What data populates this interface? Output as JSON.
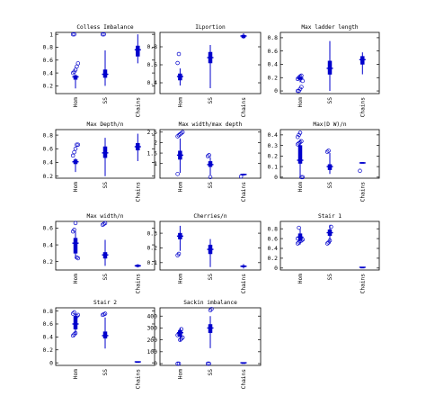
{
  "figure": {
    "accent_color": "#0000cc",
    "axis_color": "#000000"
  },
  "chart_data": [
    {
      "type": "boxplot",
      "title": "Colless Imbalance",
      "categories": [
        "Hom",
        "SS",
        "Chains"
      ],
      "yticks": [
        "0.2",
        "0.4",
        "0.6",
        "0.8",
        "1"
      ],
      "ytick_values": [
        0.2,
        0.4,
        0.6,
        0.8,
        1.0
      ],
      "ylim": [
        0.08,
        1.03
      ],
      "series": [
        {
          "q1": 0.3,
          "median": 0.34,
          "q3": 0.36,
          "whisker_low": 0.16,
          "whisker_high": 0.38,
          "outliers": [
            0.4,
            0.42,
            0.45,
            0.5,
            0.55,
            1.0,
            1.0
          ]
        },
        {
          "q1": 0.33,
          "median": 0.38,
          "q3": 0.45,
          "whisker_low": 0.2,
          "whisker_high": 0.75,
          "outliers": [
            1.0,
            1.0
          ]
        },
        {
          "q1": 0.66,
          "median": 0.76,
          "q3": 0.82,
          "whisker_low": 0.55,
          "whisker_high": 1.0,
          "outliers": []
        }
      ]
    },
    {
      "type": "boxplot",
      "title": "ILportion",
      "categories": [
        "Hom",
        "SS",
        "Chains"
      ],
      "yticks": [
        "0.4",
        "0.6",
        "0.8"
      ],
      "ytick_values": [
        0.4,
        0.6,
        0.8
      ],
      "ylim": [
        0.28,
        0.96
      ],
      "series": [
        {
          "q1": 0.43,
          "median": 0.47,
          "q3": 0.5,
          "whisker_low": 0.37,
          "whisker_high": 0.56,
          "outliers": [
            0.62,
            0.72
          ]
        },
        {
          "q1": 0.62,
          "median": 0.68,
          "q3": 0.74,
          "whisker_low": 0.34,
          "whisker_high": 0.82,
          "outliers": []
        },
        {
          "q1": 0.9,
          "median": 0.92,
          "q3": 0.93,
          "whisker_low": 0.89,
          "whisker_high": 0.95,
          "outliers": []
        }
      ]
    },
    {
      "type": "boxplot",
      "title": "Max ladder length",
      "categories": [
        "Hom",
        "SS",
        "Chains"
      ],
      "yticks": [
        "0",
        "0.2",
        "0.4",
        "0.6",
        "0.8"
      ],
      "ytick_values": [
        0,
        0.2,
        0.4,
        0.6,
        0.8
      ],
      "ylim": [
        -0.04,
        0.88
      ],
      "series": [
        {
          "q1": 0.17,
          "median": 0.19,
          "q3": 0.21,
          "whisker_low": 0.13,
          "whisker_high": 0.24,
          "outliers": [
            0.0,
            0.0,
            0.03,
            0.06,
            0.15,
            0.18,
            0.2,
            0.22,
            0.23
          ]
        },
        {
          "q1": 0.25,
          "median": 0.34,
          "q3": 0.45,
          "whisker_low": 0.0,
          "whisker_high": 0.75,
          "outliers": []
        },
        {
          "q1": 0.4,
          "median": 0.47,
          "q3": 0.52,
          "whisker_low": 0.25,
          "whisker_high": 0.58,
          "outliers": []
        }
      ]
    },
    {
      "type": "boxplot",
      "title": "Max Depth/n",
      "categories": [
        "Hom",
        "SS",
        "Chains"
      ],
      "yticks": [
        "0.2",
        "0.4",
        "0.6",
        "0.8"
      ],
      "ytick_values": [
        0.2,
        0.4,
        0.6,
        0.8
      ],
      "ylim": [
        0.17,
        0.88
      ],
      "series": [
        {
          "q1": 0.38,
          "median": 0.41,
          "q3": 0.44,
          "whisker_low": 0.26,
          "whisker_high": 0.46,
          "outliers": [
            0.5,
            0.55,
            0.6,
            0.66,
            0.66
          ]
        },
        {
          "q1": 0.47,
          "median": 0.54,
          "q3": 0.63,
          "whisker_low": 0.2,
          "whisker_high": 0.76,
          "outliers": []
        },
        {
          "q1": 0.58,
          "median": 0.63,
          "q3": 0.68,
          "whisker_low": 0.42,
          "whisker_high": 0.82,
          "outliers": []
        }
      ]
    },
    {
      "type": "boxplot",
      "title": "Max width/max depth",
      "categories": [
        "Hom",
        "SS",
        "Chains"
      ],
      "yticks": [
        "1",
        "1.5",
        "2",
        "2.5"
      ],
      "ytick_values": [
        1,
        1.5,
        2,
        2.5
      ],
      "ylim": [
        0.3,
        2.62
      ],
      "series": [
        {
          "q1": 1.2,
          "median": 1.4,
          "q3": 1.6,
          "whisker_low": 0.55,
          "whisker_high": 2.2,
          "outliers": [
            2.3,
            2.35,
            2.4,
            2.45,
            2.5,
            0.5
          ]
        },
        {
          "q1": 0.85,
          "median": 0.95,
          "q3": 1.1,
          "whisker_low": 0.45,
          "whisker_high": 1.3,
          "outliers": [
            1.35,
            1.4,
            0.35
          ]
        },
        {
          "q1": 0.45,
          "median": 0.48,
          "q3": 0.5,
          "whisker_low": 0.42,
          "whisker_high": 0.52,
          "outliers": [
            0.38
          ]
        }
      ]
    },
    {
      "type": "boxplot",
      "title": "Max(D W)/n",
      "categories": [
        "Hom",
        "SS",
        "Chains"
      ],
      "yticks": [
        "0",
        "0.1",
        "0.2",
        "0.3",
        "0.4"
      ],
      "ytick_values": [
        0,
        0.1,
        0.2,
        0.3,
        0.4
      ],
      "ylim": [
        -0.01,
        0.45
      ],
      "series": [
        {
          "q1": 0.13,
          "median": 0.16,
          "q3": 0.3,
          "whisker_low": 0.0,
          "whisker_high": 0.36,
          "outliers": [
            0.38,
            0.4,
            0.42,
            0.0,
            0.0,
            0.31,
            0.32,
            0.33,
            0.34
          ]
        },
        {
          "q1": 0.07,
          "median": 0.1,
          "q3": 0.12,
          "whisker_low": 0.03,
          "whisker_high": 0.23,
          "outliers": [
            0.24,
            0.25
          ]
        },
        {
          "q1": 0.13,
          "median": 0.135,
          "q3": 0.14,
          "whisker_low": 0.13,
          "whisker_high": 0.14,
          "outliers": [
            0.06
          ]
        }
      ]
    },
    {
      "type": "boxplot",
      "title": "Max width/n",
      "categories": [
        "Hom",
        "SS",
        "Chains"
      ],
      "yticks": [
        "0.2",
        "0.4",
        "0.6"
      ],
      "ytick_values": [
        0.2,
        0.4,
        0.6
      ],
      "ylim": [
        0.1,
        0.68
      ],
      "series": [
        {
          "q1": 0.3,
          "median": 0.42,
          "q3": 0.48,
          "whisker_low": 0.24,
          "whisker_high": 0.56,
          "outliers": [
            0.56,
            0.58,
            0.66,
            0.25,
            0.24
          ]
        },
        {
          "q1": 0.24,
          "median": 0.28,
          "q3": 0.31,
          "whisker_low": 0.15,
          "whisker_high": 0.46,
          "outliers": [
            0.64,
            0.65,
            0.66
          ]
        },
        {
          "q1": 0.14,
          "median": 0.15,
          "q3": 0.16,
          "whisker_low": 0.13,
          "whisker_high": 0.17,
          "outliers": []
        }
      ]
    },
    {
      "type": "boxplot",
      "title": "Cherries/n",
      "categories": [
        "Hom",
        "SS",
        "Chains"
      ],
      "yticks": [
        "0.1",
        "0.2",
        "0.3"
      ],
      "ytick_values": [
        0.1,
        0.2,
        0.3
      ],
      "ylim": [
        0.05,
        0.38
      ],
      "series": [
        {
          "q1": 0.26,
          "median": 0.28,
          "q3": 0.3,
          "whisker_low": 0.18,
          "whisker_high": 0.35,
          "outliers": [
            0.15,
            0.16
          ]
        },
        {
          "q1": 0.16,
          "median": 0.19,
          "q3": 0.22,
          "whisker_low": 0.07,
          "whisker_high": 0.26,
          "outliers": []
        },
        {
          "q1": 0.07,
          "median": 0.075,
          "q3": 0.08,
          "whisker_low": 0.06,
          "whisker_high": 0.09,
          "outliers": []
        }
      ]
    },
    {
      "type": "boxplot",
      "title": "Stair 1",
      "categories": [
        "Hom",
        "SS",
        "Chains"
      ],
      "yticks": [
        "0",
        "0.2",
        "0.4",
        "0.6",
        "0.8"
      ],
      "ytick_values": [
        0,
        0.2,
        0.4,
        0.6,
        0.8
      ],
      "ylim": [
        -0.04,
        0.95
      ],
      "series": [
        {
          "q1": 0.56,
          "median": 0.63,
          "q3": 0.7,
          "whisker_low": 0.48,
          "whisker_high": 0.8,
          "outliers": [
            0.5,
            0.52,
            0.55,
            0.56,
            0.58,
            0.6,
            0.82
          ]
        },
        {
          "q1": 0.66,
          "median": 0.72,
          "q3": 0.78,
          "whisker_low": 0.5,
          "whisker_high": 0.88,
          "outliers": [
            0.5,
            0.52,
            0.56,
            0.84
          ]
        },
        {
          "q1": 0.01,
          "median": 0.015,
          "q3": 0.02,
          "whisker_low": 0.01,
          "whisker_high": 0.02,
          "outliers": []
        }
      ]
    },
    {
      "type": "boxplot",
      "title": "Stair 2",
      "categories": [
        "Hom",
        "SS",
        "Chains"
      ],
      "yticks": [
        "0",
        "0.2",
        "0.4",
        "0.6",
        "0.8"
      ],
      "ytick_values": [
        0,
        0.2,
        0.4,
        0.6,
        0.8
      ],
      "ylim": [
        -0.04,
        0.85
      ],
      "series": [
        {
          "q1": 0.52,
          "median": 0.6,
          "q3": 0.72,
          "whisker_low": 0.44,
          "whisker_high": 0.76,
          "outliers": [
            0.42,
            0.44,
            0.46,
            0.72,
            0.74,
            0.76,
            0.78
          ]
        },
        {
          "q1": 0.38,
          "median": 0.42,
          "q3": 0.48,
          "whisker_low": 0.22,
          "whisker_high": 0.7,
          "outliers": [
            0.74,
            0.75,
            0.76
          ]
        },
        {
          "q1": 0.01,
          "median": 0.015,
          "q3": 0.02,
          "whisker_low": 0.01,
          "whisker_high": 0.02,
          "outliers": []
        }
      ]
    },
    {
      "type": "boxplot",
      "title": "Sackin imbalance",
      "categories": [
        "Hom",
        "SS",
        "Chains"
      ],
      "yticks": [
        "0",
        "100",
        "200",
        "300",
        "400"
      ],
      "ytick_values": [
        0,
        100,
        200,
        300,
        400
      ],
      "ylim": [
        -15,
        470
      ],
      "series": [
        {
          "q1": 230,
          "median": 260,
          "q3": 280,
          "whisker_low": 190,
          "whisker_high": 300,
          "outliers": [
            0,
            0,
            200,
            210,
            220,
            240,
            250,
            270,
            290
          ]
        },
        {
          "q1": 260,
          "median": 300,
          "q3": 330,
          "whisker_low": 130,
          "whisker_high": 400,
          "outliers": [
            0,
            0,
            450,
            460
          ]
        },
        {
          "q1": 5,
          "median": 7,
          "q3": 9,
          "whisker_low": 3,
          "whisker_high": 11,
          "outliers": []
        }
      ]
    }
  ]
}
